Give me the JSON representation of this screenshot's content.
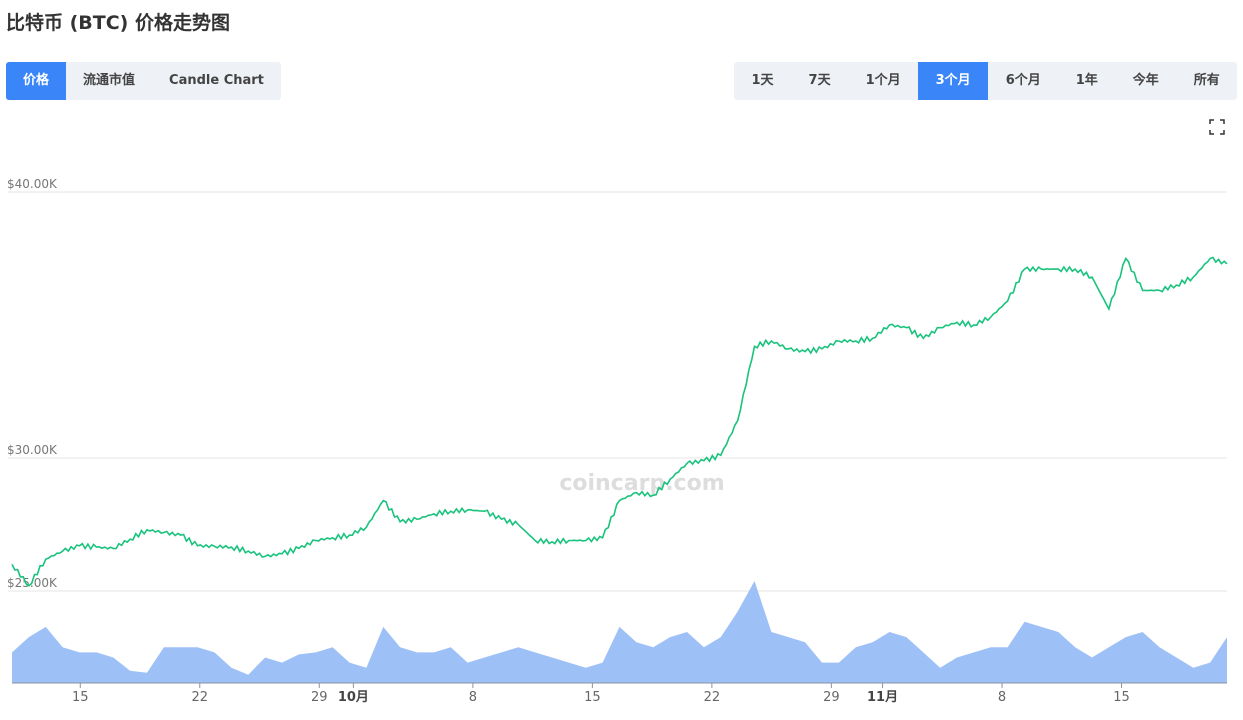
{
  "title": "比特币 (BTC) 价格走势图",
  "view_tabs": [
    {
      "label": "价格",
      "active": true
    },
    {
      "label": "流通市值",
      "active": false
    },
    {
      "label": "Candle Chart",
      "active": false
    }
  ],
  "range_tabs": [
    {
      "label": "1天",
      "active": false
    },
    {
      "label": "7天",
      "active": false
    },
    {
      "label": "1个月",
      "active": false
    },
    {
      "label": "3个月",
      "active": true
    },
    {
      "label": "6个月",
      "active": false
    },
    {
      "label": "1年",
      "active": false
    },
    {
      "label": "今年",
      "active": false
    },
    {
      "label": "所有",
      "active": false
    }
  ],
  "fullscreen_icon": "fullscreen-icon",
  "watermark": "coincarp.com",
  "colors": {
    "accent": "#3a86f8",
    "price_line": "#19c37d",
    "volume_fill": "#9dc0f7"
  },
  "chart_data": {
    "type": "line",
    "title": "",
    "xlabel": "",
    "ylabel": "",
    "x_start": "2023-09-11",
    "ylim": [
      25000,
      40000
    ],
    "grid": true,
    "y_ticks": [
      {
        "value": 25000,
        "label": "$25.00K"
      },
      {
        "value": 30000,
        "label": "$30.00K"
      },
      {
        "value": 40000,
        "label": "$40.00K"
      }
    ],
    "x_ticks": [
      {
        "day": "09-15",
        "label": "15",
        "bold": false
      },
      {
        "day": "09-22",
        "label": "22",
        "bold": false
      },
      {
        "day": "09-29",
        "label": "29",
        "bold": false
      },
      {
        "day": "10-01",
        "label": "10月",
        "bold": true
      },
      {
        "day": "10-08",
        "label": "8",
        "bold": false
      },
      {
        "day": "10-15",
        "label": "15",
        "bold": false
      },
      {
        "day": "10-22",
        "label": "22",
        "bold": false
      },
      {
        "day": "10-29",
        "label": "29",
        "bold": false
      },
      {
        "day": "11-01",
        "label": "11月",
        "bold": true
      },
      {
        "day": "11-08",
        "label": "8",
        "bold": false
      },
      {
        "day": "11-15",
        "label": "15",
        "bold": false
      }
    ],
    "series": [
      {
        "type": "line",
        "values": [
          26000,
          25200,
          26200,
          26500,
          26700,
          26650,
          26600,
          26950,
          27300,
          27200,
          27100,
          26700,
          26680,
          26650,
          26500,
          26300,
          26400,
          26600,
          26900,
          27000,
          27100,
          27400,
          28400,
          27600,
          27700,
          27900,
          28000,
          28050,
          28000,
          27700,
          27500,
          26900,
          26850,
          26900,
          26900,
          27000,
          28400,
          28700,
          28600,
          29200,
          29800,
          29900,
          30100,
          31400,
          34200,
          34400,
          34100,
          34000,
          34100,
          34400,
          34400,
          34500,
          35000,
          34900,
          34500,
          34900,
          35100,
          35000,
          35300,
          35900,
          37100,
          37100,
          37100,
          37100,
          36800,
          35600,
          37500,
          36300,
          36300,
          36500,
          36800,
          37500,
          37300
        ]
      },
      {
        "type": "area",
        "values": [
          0.3,
          0.45,
          0.55,
          0.35,
          0.3,
          0.3,
          0.25,
          0.12,
          0.1,
          0.35,
          0.35,
          0.35,
          0.3,
          0.15,
          0.08,
          0.25,
          0.2,
          0.28,
          0.3,
          0.35,
          0.2,
          0.15,
          0.55,
          0.35,
          0.3,
          0.3,
          0.35,
          0.2,
          0.25,
          0.3,
          0.35,
          0.3,
          0.25,
          0.2,
          0.15,
          0.2,
          0.55,
          0.4,
          0.35,
          0.45,
          0.5,
          0.35,
          0.45,
          0.7,
          1.0,
          0.5,
          0.45,
          0.4,
          0.2,
          0.2,
          0.35,
          0.4,
          0.5,
          0.45,
          0.3,
          0.15,
          0.25,
          0.3,
          0.35,
          0.35,
          0.6,
          0.55,
          0.5,
          0.35,
          0.25,
          0.35,
          0.45,
          0.5,
          0.35,
          0.25,
          0.15,
          0.2,
          0.45
        ]
      }
    ]
  }
}
